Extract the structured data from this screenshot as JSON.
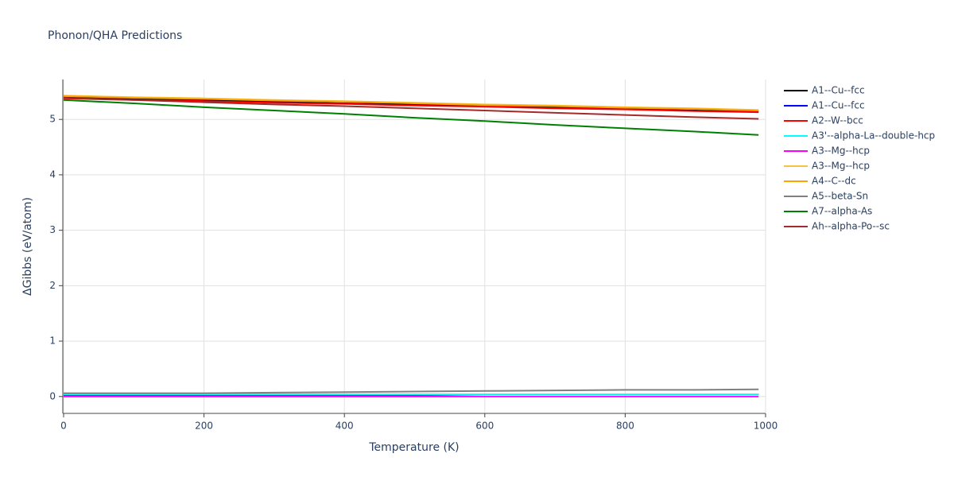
{
  "chart_data": {
    "type": "line",
    "title": "Phonon/QHA Predictions",
    "x_label": "Temperature (K)",
    "y_label": "ΔGibbs (eV/atom)",
    "x": [
      0,
      100,
      200,
      300,
      400,
      500,
      600,
      700,
      800,
      900,
      990
    ],
    "xlim": [
      0,
      1000
    ],
    "xticks": [
      0,
      200,
      400,
      600,
      800,
      1000
    ],
    "ylim": [
      -0.29,
      5.72
    ],
    "yticks": [
      0,
      1,
      2,
      3,
      4,
      5
    ],
    "grid": true,
    "legend": "right",
    "series": [
      {
        "name": "A1--Cu--fcc",
        "color": "#000000",
        "values": [
          5.4,
          5.37,
          5.35,
          5.32,
          5.29,
          5.27,
          5.24,
          5.22,
          5.19,
          5.16,
          5.14
        ]
      },
      {
        "name": "A1--Cu--fcc",
        "color": "#0000ff",
        "values": [
          0.03,
          0.03,
          0.03,
          0.03,
          0.03,
          0.03,
          0.04,
          0.04,
          0.04,
          0.04,
          0.04
        ]
      },
      {
        "name": "A2--W--bcc",
        "color": "#ff0000",
        "values": [
          5.38,
          5.35,
          5.33,
          5.3,
          5.28,
          5.25,
          5.23,
          5.2,
          5.18,
          5.15,
          5.13
        ]
      },
      {
        "name": "A3'--alpha-La--double-hcp",
        "color": "#00ffff",
        "values": [
          0.04,
          0.04,
          0.04,
          0.04,
          0.04,
          0.04,
          0.04,
          0.04,
          0.04,
          0.04,
          0.04
        ]
      },
      {
        "name": "A3--Mg--hcp",
        "color": "#ff00ff",
        "values": [
          0.0,
          0.0,
          0.0,
          0.0,
          0.0,
          0.0,
          0.0,
          0.0,
          0.0,
          0.0,
          0.0
        ]
      },
      {
        "name": "A3--Mg--hcp",
        "color": "#f5c242",
        "values": [
          5.43,
          5.4,
          5.38,
          5.35,
          5.33,
          5.3,
          5.27,
          5.25,
          5.22,
          5.2,
          5.17
        ]
      },
      {
        "name": "A4--C--dc",
        "color": "#ffa500",
        "values": [
          5.42,
          5.39,
          5.37,
          5.34,
          5.32,
          5.29,
          5.26,
          5.24,
          5.21,
          5.19,
          5.16
        ]
      },
      {
        "name": "A5--beta-Sn",
        "color": "#808080",
        "values": [
          0.06,
          0.06,
          0.06,
          0.07,
          0.08,
          0.09,
          0.1,
          0.11,
          0.12,
          0.12,
          0.13
        ]
      },
      {
        "name": "A7--alpha-As",
        "color": "#008000",
        "values": [
          5.35,
          5.29,
          5.22,
          5.16,
          5.1,
          5.03,
          4.97,
          4.9,
          4.84,
          4.78,
          4.72
        ]
      },
      {
        "name": "Ah--alpha-Po--sc",
        "color": "#a52a2a",
        "values": [
          5.39,
          5.35,
          5.31,
          5.27,
          5.24,
          5.2,
          5.16,
          5.12,
          5.08,
          5.04,
          5.01
        ]
      }
    ]
  }
}
